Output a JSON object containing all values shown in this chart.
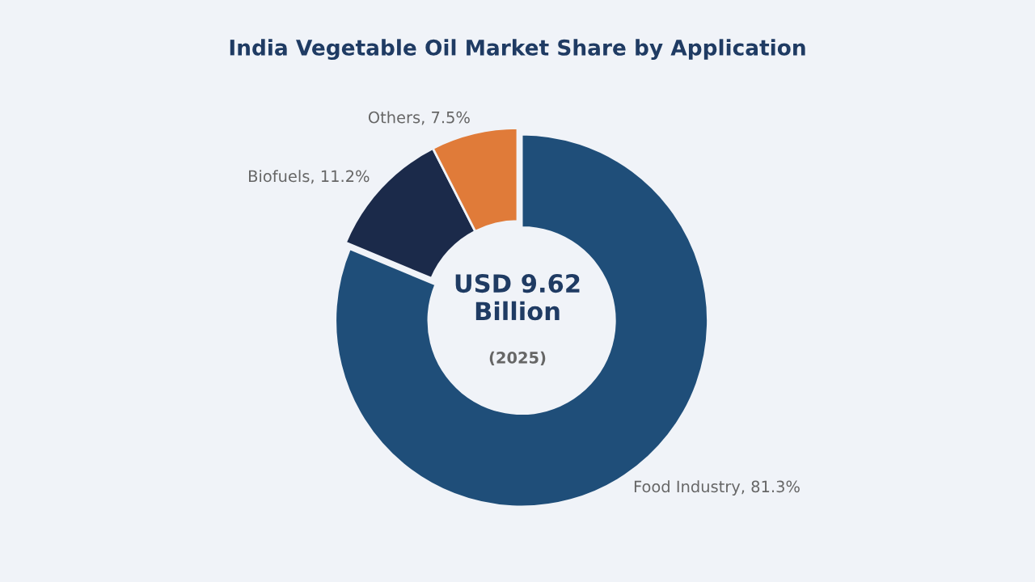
{
  "chart_data": {
    "type": "donut",
    "title": "India Vegetable Oil Market Share by Application",
    "categories": [
      "Food Industry",
      "Biofuels",
      "Others"
    ],
    "values": [
      81.3,
      11.2,
      7.5
    ],
    "value_labels": [
      "81.3%",
      "11.2%",
      "7.5%"
    ],
    "colors": [
      "#1f4e79",
      "#1b2a4a",
      "#e07b39"
    ],
    "annotations": [
      "USD 9.62\nBillion",
      "(2025)"
    ],
    "legend": false
  }
}
